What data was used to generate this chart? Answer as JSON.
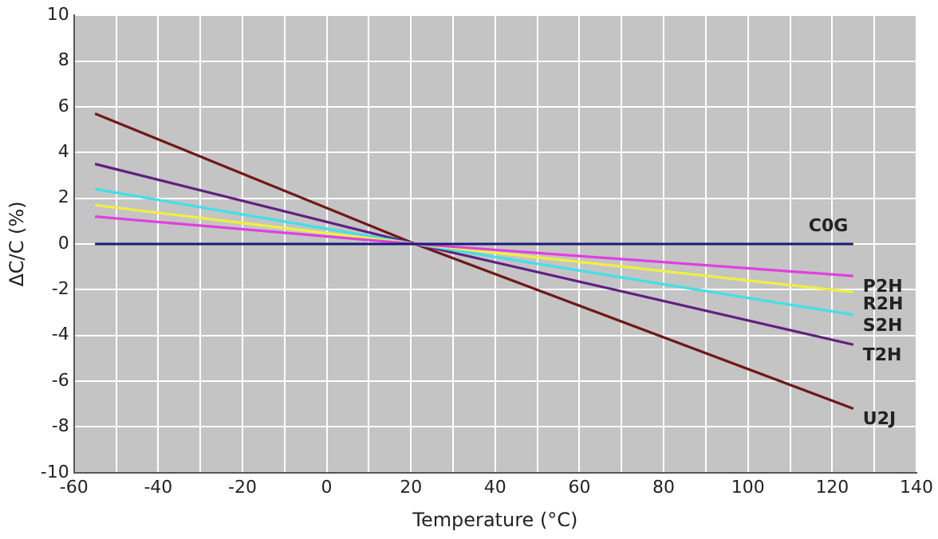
{
  "chart_data": {
    "type": "line",
    "xlabel": "Temperature (°C)",
    "ylabel": "ΔC/C (%)",
    "xlim": [
      -60,
      140
    ],
    "xticks": [
      -60,
      {
        "value": -50,
        "label": null
      },
      -40,
      {
        "value": -30,
        "label": null
      },
      -20,
      {
        "value": -10,
        "label": null
      },
      0,
      {
        "value": 10,
        "label": null
      },
      20,
      {
        "value": 30,
        "label": null
      },
      40,
      {
        "value": 50,
        "label": null
      },
      60,
      {
        "value": 70,
        "label": null
      },
      80,
      {
        "value": 90,
        "label": null
      },
      100,
      {
        "value": 110,
        "label": null
      },
      120,
      {
        "value": 130,
        "label": null
      },
      140
    ],
    "ylim": [
      -10,
      10
    ],
    "yticks": [
      -10,
      -8,
      -6,
      -4,
      -2,
      0,
      2,
      4,
      6,
      8,
      10
    ],
    "grid": true,
    "legend": false,
    "marker": "none",
    "line_style": "solid",
    "series": [
      {
        "name": "C0G",
        "color": "#1a1a7a",
        "x": [
          -55,
          21,
          125
        ],
        "values": [
          0,
          0,
          0
        ]
      },
      {
        "name": "P2H",
        "color": "#e040e0",
        "x": [
          -55,
          21,
          125
        ],
        "values": [
          1.2,
          0,
          -1.4
        ]
      },
      {
        "name": "R2H",
        "color": "#f0f040",
        "x": [
          -55,
          21,
          125
        ],
        "values": [
          1.7,
          0,
          -2.1
        ]
      },
      {
        "name": "S2H",
        "color": "#40e0e8",
        "x": [
          -55,
          21,
          125
        ],
        "values": [
          2.4,
          0,
          -3.1
        ]
      },
      {
        "name": "T2H",
        "color": "#602080",
        "x": [
          -55,
          21,
          125
        ],
        "values": [
          3.5,
          0,
          -4.4
        ]
      },
      {
        "name": "U2J",
        "color": "#701818",
        "x": [
          -55,
          21,
          125
        ],
        "values": [
          5.7,
          0,
          -7.2
        ]
      }
    ]
  }
}
